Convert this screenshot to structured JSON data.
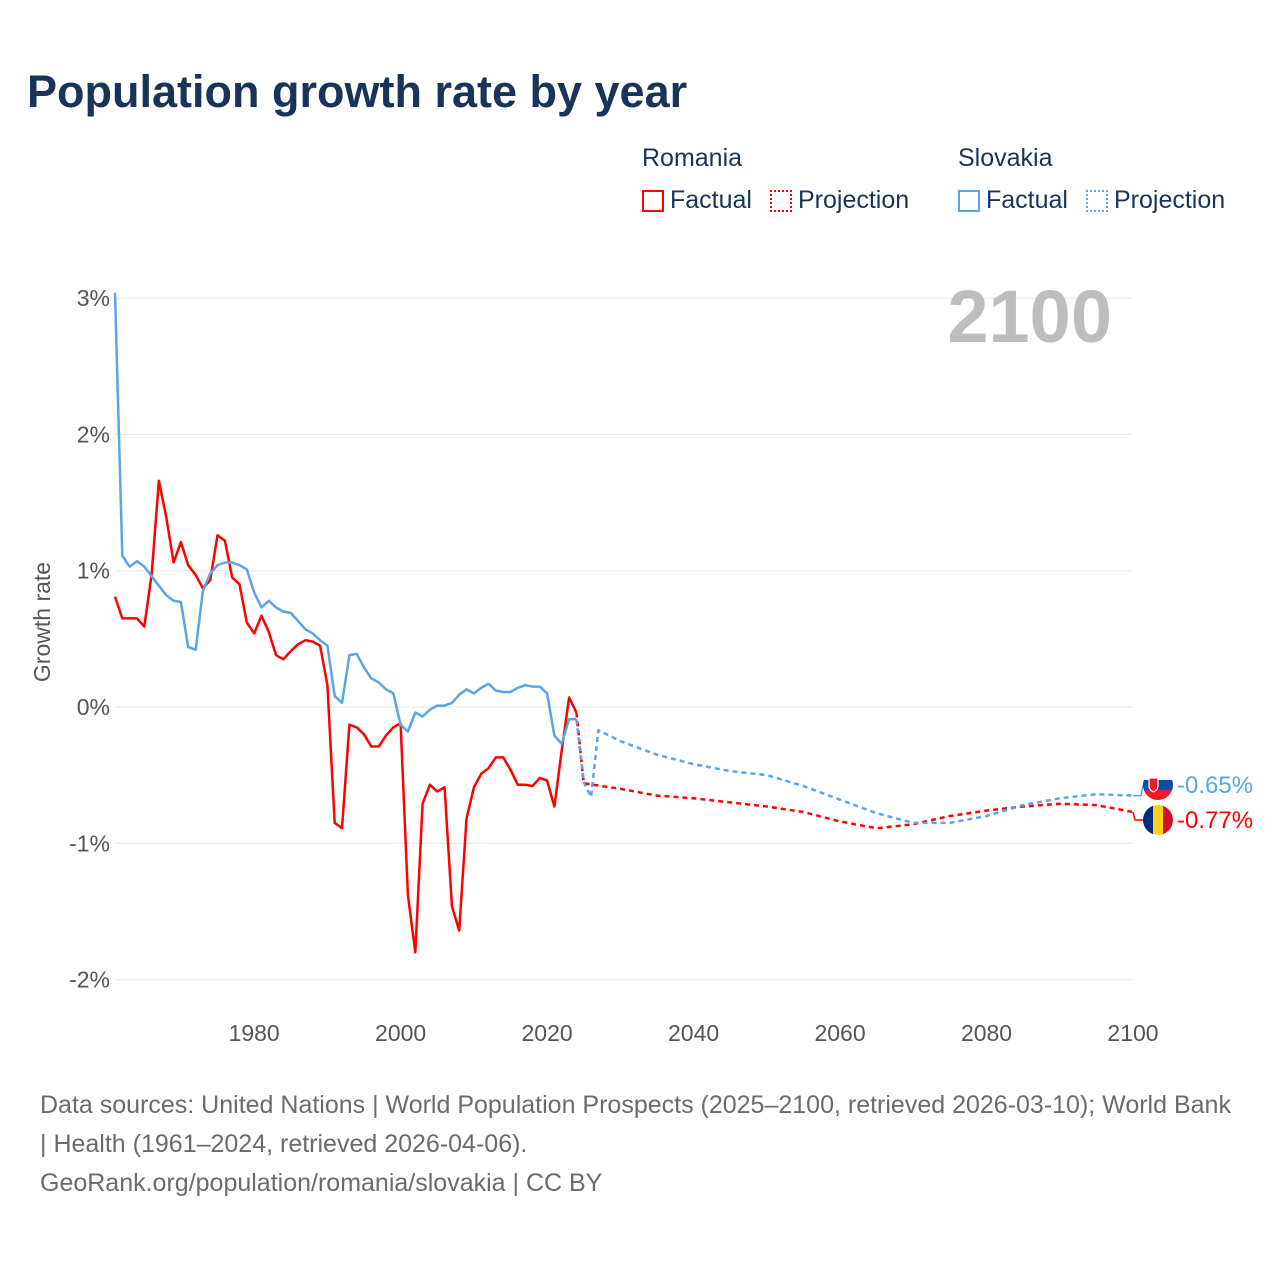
{
  "title": "Population growth rate by year",
  "legend": {
    "groups": [
      {
        "name": "Romania",
        "factual": "Factual",
        "projection": "Projection",
        "color": "#ff0000"
      },
      {
        "name": "Slovakia",
        "factual": "Factual",
        "projection": "Projection",
        "color": "#5ba4e6"
      }
    ]
  },
  "current_year_label": "2100",
  "end_labels": {
    "romania": "-0.77%",
    "slovakia": "-0.65%"
  },
  "flags": {
    "romania": "romania-flag-icon",
    "slovakia": "slovakia-flag-icon"
  },
  "footer": {
    "sources": "Data sources: United Nations | World Population Prospects (2025–2100, retrieved 2026-03-10); World Bank | Health (1961–2024, retrieved 2026-04-06).",
    "link": "GeoRank.org/population/romania/slovakia | CC BY"
  },
  "chart_data": {
    "type": "line",
    "title": "Population growth rate by year",
    "ylabel": "Growth rate",
    "xlabel": "",
    "xlim": [
      1961,
      2100
    ],
    "ylim": [
      -2.2,
      3.1
    ],
    "x_ticks": [
      1980,
      2000,
      2020,
      2040,
      2060,
      2080,
      2100
    ],
    "y_ticks": [
      3,
      2,
      1,
      0,
      -1,
      -2
    ],
    "y_tick_labels": [
      "3%",
      "2%",
      "1%",
      "0%",
      "-1%",
      "-2%"
    ],
    "grid": true,
    "legend_position": "top-right",
    "series": [
      {
        "name": "Romania Factual",
        "color": "#ff0000",
        "style": "solid",
        "x": [
          1961,
          1962,
          1963,
          1964,
          1965,
          1966,
          1967,
          1968,
          1969,
          1970,
          1971,
          1972,
          1973,
          1974,
          1975,
          1976,
          1977,
          1978,
          1979,
          1980,
          1981,
          1982,
          1983,
          1984,
          1985,
          1986,
          1987,
          1988,
          1989,
          1990,
          1991,
          1992,
          1993,
          1994,
          1995,
          1996,
          1997,
          1998,
          1999,
          2000,
          2001,
          2002,
          2003,
          2004,
          2005,
          2006,
          2007,
          2008,
          2009,
          2010,
          2011,
          2012,
          2013,
          2014,
          2015,
          2016,
          2017,
          2018,
          2019,
          2020,
          2021,
          2022,
          2023,
          2024
        ],
        "values": [
          0.81,
          0.65,
          0.65,
          0.65,
          0.59,
          0.97,
          1.66,
          1.39,
          1.06,
          1.21,
          1.04,
          0.97,
          0.87,
          0.93,
          1.26,
          1.22,
          0.95,
          0.9,
          0.62,
          0.54,
          0.67,
          0.55,
          0.38,
          0.35,
          0.41,
          0.46,
          0.49,
          0.48,
          0.45,
          0.16,
          -0.85,
          -0.89,
          -0.13,
          -0.15,
          -0.2,
          -0.29,
          -0.29,
          -0.21,
          -0.15,
          -0.12,
          -1.38,
          -1.8,
          -0.71,
          -0.57,
          -0.62,
          -0.59,
          -1.46,
          -1.64,
          -0.82,
          -0.59,
          -0.49,
          -0.45,
          -0.37,
          -0.37,
          -0.46,
          -0.57,
          -0.57,
          -0.58,
          -0.52,
          -0.54,
          -0.73,
          -0.32,
          0.07,
          -0.04
        ]
      },
      {
        "name": "Romania Projection",
        "color": "#ff0000",
        "style": "dashed",
        "x": [
          2024,
          2025,
          2030,
          2035,
          2040,
          2045,
          2050,
          2055,
          2060,
          2065,
          2070,
          2075,
          2080,
          2085,
          2090,
          2095,
          2100
        ],
        "values": [
          -0.04,
          -0.56,
          -0.6,
          -0.65,
          -0.67,
          -0.7,
          -0.73,
          -0.77,
          -0.84,
          -0.89,
          -0.86,
          -0.8,
          -0.76,
          -0.73,
          -0.71,
          -0.72,
          -0.77
        ]
      },
      {
        "name": "Slovakia Factual",
        "color": "#5ba4e6",
        "style": "solid",
        "x": [
          1961,
          1962,
          1963,
          1964,
          1965,
          1966,
          1967,
          1968,
          1969,
          1970,
          1971,
          1972,
          1973,
          1974,
          1975,
          1976,
          1977,
          1978,
          1979,
          1980,
          1981,
          1982,
          1983,
          1984,
          1985,
          1986,
          1987,
          1988,
          1989,
          1990,
          1991,
          1992,
          1993,
          1994,
          1995,
          1996,
          1997,
          1998,
          1999,
          2000,
          2001,
          2002,
          2003,
          2004,
          2005,
          2006,
          2007,
          2008,
          2009,
          2010,
          2011,
          2012,
          2013,
          2014,
          2015,
          2016,
          2017,
          2018,
          2019,
          2020,
          2021,
          2022,
          2023,
          2024
        ],
        "values": [
          3.04,
          1.11,
          1.03,
          1.07,
          1.03,
          0.96,
          0.89,
          0.82,
          0.78,
          0.77,
          0.44,
          0.42,
          0.85,
          0.98,
          1.04,
          1.06,
          1.06,
          1.04,
          1.01,
          0.84,
          0.73,
          0.78,
          0.73,
          0.7,
          0.69,
          0.63,
          0.57,
          0.54,
          0.49,
          0.45,
          0.08,
          0.03,
          0.38,
          0.39,
          0.29,
          0.21,
          0.18,
          0.13,
          0.1,
          -0.13,
          -0.18,
          -0.04,
          -0.07,
          -0.02,
          0.01,
          0.01,
          0.03,
          0.09,
          0.13,
          0.1,
          0.14,
          0.17,
          0.12,
          0.11,
          0.11,
          0.14,
          0.16,
          0.15,
          0.15,
          0.1,
          -0.21,
          -0.27,
          -0.09,
          -0.09
        ]
      },
      {
        "name": "Slovakia Projection",
        "color": "#5ba4e6",
        "style": "dashed",
        "x": [
          2024,
          2025,
          2026,
          2027,
          2030,
          2035,
          2040,
          2045,
          2050,
          2055,
          2060,
          2065,
          2070,
          2075,
          2080,
          2085,
          2090,
          2095,
          2100
        ],
        "values": [
          -0.09,
          -0.55,
          -0.66,
          -0.17,
          -0.25,
          -0.35,
          -0.42,
          -0.47,
          -0.5,
          -0.58,
          -0.68,
          -0.78,
          -0.85,
          -0.85,
          -0.8,
          -0.72,
          -0.67,
          -0.64,
          -0.65
        ]
      }
    ]
  }
}
